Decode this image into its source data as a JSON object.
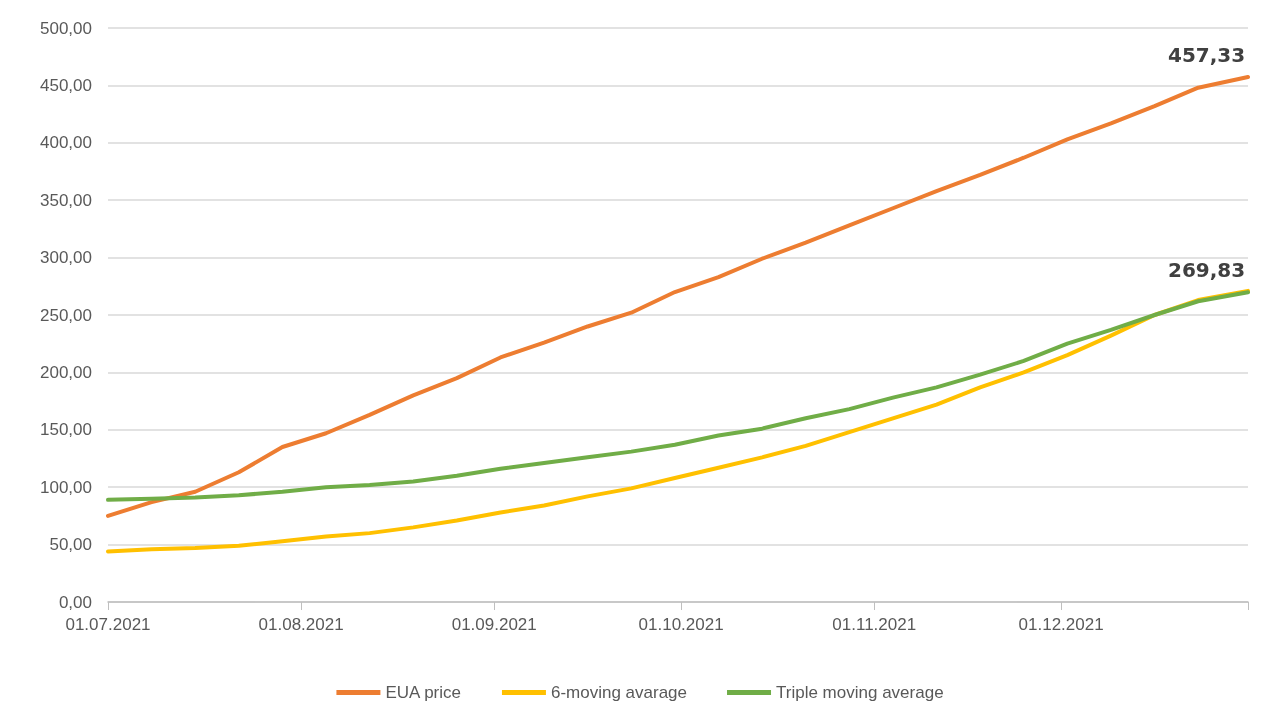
{
  "chart_data": {
    "type": "line",
    "x": [
      "2021-07-01",
      "2021-07-08",
      "2021-07-15",
      "2021-07-22",
      "2021-07-29",
      "2021-08-05",
      "2021-08-12",
      "2021-08-19",
      "2021-08-26",
      "2021-09-02",
      "2021-09-09",
      "2021-09-16",
      "2021-09-23",
      "2021-09-30",
      "2021-10-07",
      "2021-10-14",
      "2021-10-21",
      "2021-10-28",
      "2021-11-04",
      "2021-11-11",
      "2021-11-18",
      "2021-11-25",
      "2021-12-02",
      "2021-12-09",
      "2021-12-16",
      "2021-12-23",
      "2021-12-31"
    ],
    "series": [
      {
        "name": "EUA price",
        "color": "#ed7d31",
        "values": [
          75,
          87,
          96,
          113,
          135,
          147,
          163,
          180,
          195,
          213,
          226,
          240,
          252,
          270,
          283,
          299,
          313,
          328,
          343,
          358,
          372,
          387,
          403,
          417,
          432,
          448,
          457.33
        ],
        "value_labels": [
          null,
          null,
          null,
          null,
          null,
          null,
          null,
          null,
          null,
          null,
          null,
          null,
          null,
          null,
          null,
          null,
          null,
          null,
          null,
          null,
          null,
          null,
          null,
          null,
          null,
          null,
          "457,33"
        ]
      },
      {
        "name": "6-moving avarage",
        "color": "#ffc000",
        "values": [
          44,
          46,
          47,
          49,
          53,
          57,
          60,
          65,
          71,
          78,
          84,
          92,
          99,
          108,
          117,
          126,
          136,
          148,
          160,
          172,
          187,
          200,
          215,
          232,
          250,
          263,
          271
        ]
      },
      {
        "name": "Triple moving average",
        "color": "#70ad47",
        "values": [
          89,
          90,
          91,
          93,
          96,
          100,
          102,
          105,
          110,
          116,
          121,
          126,
          131,
          137,
          145,
          151,
          160,
          168,
          178,
          187,
          198,
          210,
          225,
          237,
          250,
          262,
          269.83
        ],
        "value_labels": [
          null,
          null,
          null,
          null,
          null,
          null,
          null,
          null,
          null,
          null,
          null,
          null,
          null,
          null,
          null,
          null,
          null,
          null,
          null,
          null,
          null,
          null,
          null,
          null,
          null,
          null,
          "269,83"
        ]
      }
    ],
    "xlim": [
      "2021-07-01",
      "2021-12-31"
    ],
    "xticks": [
      {
        "value": "2021-07-01",
        "label": "01.07.2021"
      },
      {
        "value": "2021-08-01",
        "label": "01.08.2021"
      },
      {
        "value": "2021-09-01",
        "label": "01.09.2021"
      },
      {
        "value": "2021-10-01",
        "label": "01.10.2021"
      },
      {
        "value": "2021-11-01",
        "label": "01.11.2021"
      },
      {
        "value": "2021-12-01",
        "label": "01.12.2021"
      },
      {
        "value": "2021-12-31",
        "label": null
      }
    ],
    "ylim": [
      0,
      500
    ],
    "yticks": [
      {
        "value": 0,
        "label": "0,00"
      },
      {
        "value": 50,
        "label": "50,00"
      },
      {
        "value": 100,
        "label": "100,00"
      },
      {
        "value": 150,
        "label": "150,00"
      },
      {
        "value": 200,
        "label": "200,00"
      },
      {
        "value": 250,
        "label": "250,00"
      },
      {
        "value": 300,
        "label": "300,00"
      },
      {
        "value": 350,
        "label": "350,00"
      },
      {
        "value": 400,
        "label": "400,00"
      },
      {
        "value": 450,
        "label": "450,00"
      },
      {
        "value": 500,
        "label": "500,00"
      }
    ],
    "grid": "y",
    "legend": "bottom"
  }
}
